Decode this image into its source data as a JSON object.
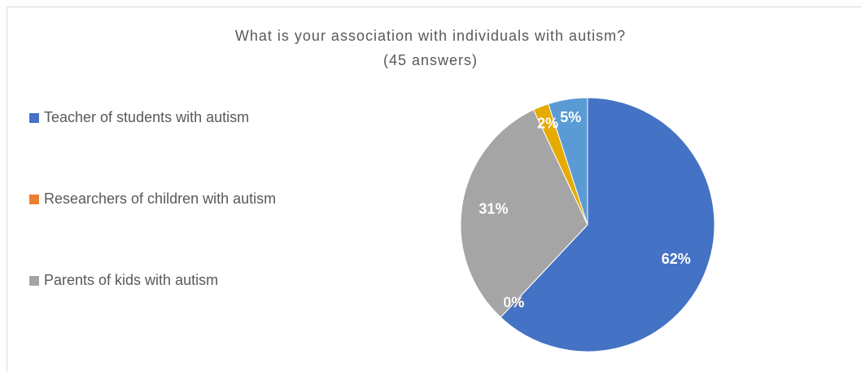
{
  "chart_data": {
    "type": "pie",
    "title": "What is your association with individuals with autism?",
    "subtitle": "(45 answers)",
    "categories": [
      "Teacher of students with autism",
      "Researchers of children with autism",
      "Parents of kids with autism",
      null,
      null
    ],
    "values": [
      62,
      0,
      31,
      2,
      5
    ],
    "value_labels": [
      "62%",
      "0%",
      "31%",
      "2%",
      "5%"
    ],
    "colors": [
      "#4472c4",
      "#ed7d31",
      "#a5a5a5",
      "#e5ab00",
      "#5b9bd5"
    ],
    "legend": "left"
  }
}
